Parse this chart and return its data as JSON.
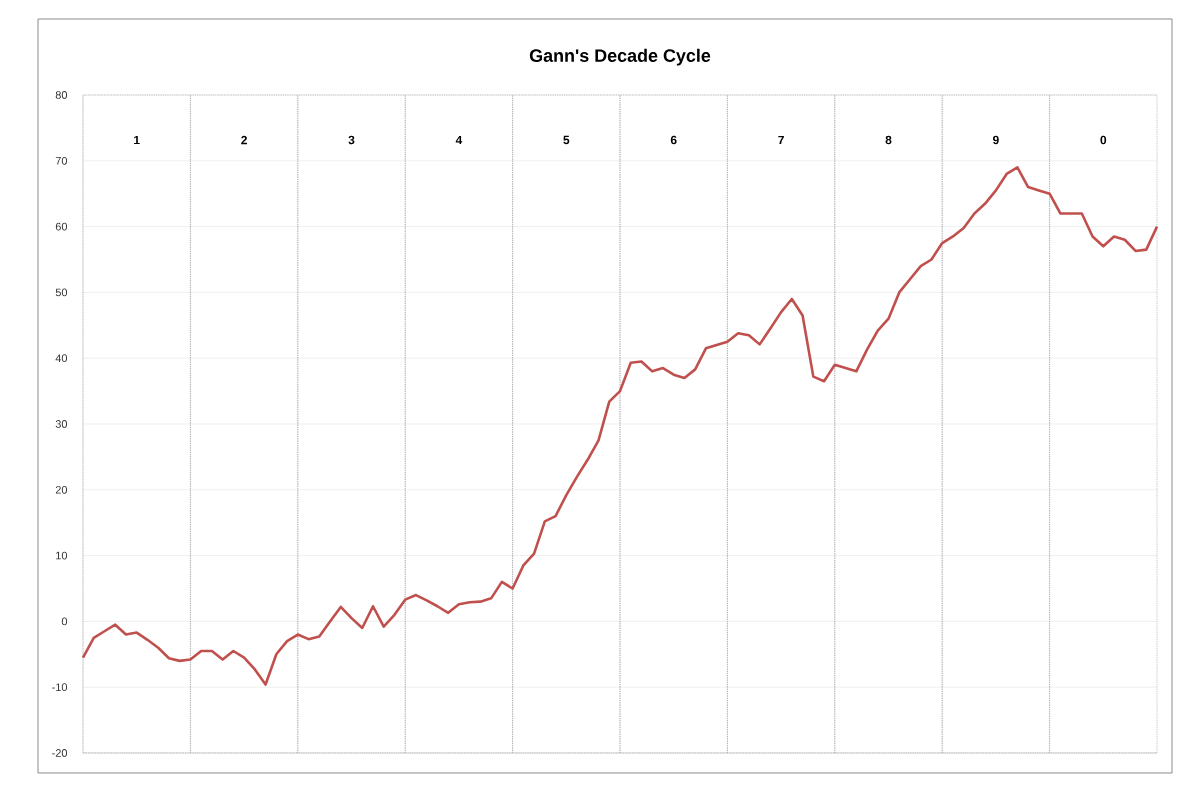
{
  "chart_data": {
    "type": "line",
    "title": "Gann's Decade Cycle",
    "categories": [
      null,
      null,
      null,
      null,
      null,
      null,
      null,
      null,
      null,
      null,
      null,
      null,
      null,
      null,
      null,
      null,
      null,
      null,
      null,
      null,
      null,
      null,
      null,
      null,
      null,
      null,
      null,
      null,
      null,
      null,
      null,
      null,
      null,
      null,
      null,
      null,
      null,
      null,
      null,
      null,
      null,
      null,
      null,
      null,
      null,
      null,
      null,
      null,
      null,
      null,
      null,
      null,
      null,
      null,
      null,
      null,
      null,
      null,
      null,
      null,
      null,
      null,
      null,
      null,
      null,
      null,
      null,
      null,
      null,
      null,
      null,
      null,
      null,
      null,
      null,
      null,
      null,
      null,
      null,
      null,
      null,
      null,
      null,
      null,
      null,
      null,
      null,
      null,
      null,
      null,
      null,
      null,
      null,
      null,
      null,
      null,
      null,
      null,
      null,
      null,
      null
    ],
    "ylim": [
      -20,
      80
    ],
    "yticks": [
      -20,
      -10,
      0,
      10,
      20,
      30,
      40,
      50,
      60,
      70,
      80
    ],
    "grid": "y",
    "tick_labels": "y",
    "annotations": [
      "1",
      "2",
      "3",
      "4",
      "5",
      "6",
      "7",
      "8",
      "9",
      "0"
    ],
    "series": [
      {
        "color": "#c0504d",
        "values": [
          -5.5,
          -2.5,
          -1.5,
          -0.5,
          -2,
          -1.7,
          -2.8,
          -4,
          -5.6,
          -6,
          -5.8,
          -4.5,
          -4.5,
          -5.8,
          -4.5,
          -5.5,
          -7.3,
          -9.6,
          -5,
          -3,
          -2,
          -2.7,
          -2.3,
          0,
          2.2,
          0.5,
          -1,
          2.3,
          -0.8,
          1,
          3.3,
          4,
          3.2,
          2.3,
          1.3,
          2.6,
          2.9,
          3,
          3.5,
          6,
          5,
          8.5,
          10.3,
          15.2,
          16,
          19.2,
          22,
          24.6,
          27.5,
          33.4,
          35,
          39.3,
          39.5,
          38,
          38.5,
          37.5,
          37,
          38.3,
          41.5,
          42,
          42.5,
          43.8,
          43.5,
          42.1,
          44.5,
          47,
          49,
          46.5,
          37.2,
          36.5,
          39,
          38.5,
          38,
          41.3,
          44.2,
          46,
          50,
          52,
          54,
          55,
          57.5,
          58.5,
          59.8,
          62,
          63.5,
          65.5,
          68,
          69,
          66,
          65.5,
          65,
          62,
          62,
          62,
          58.5,
          57,
          58.5,
          58,
          56.3,
          56.5,
          60
        ]
      }
    ]
  }
}
